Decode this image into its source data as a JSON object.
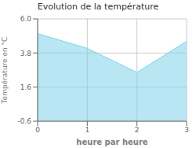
{
  "chart_data": {
    "type": "area",
    "title": "Evolution de la température",
    "xlabel": "heure par heure",
    "ylabel": "Température en °C",
    "x": [
      0,
      1,
      2,
      3
    ],
    "values": [
      5.05,
      4.1,
      2.55,
      4.55
    ],
    "color": "#7dd4ea",
    "xlim": [
      0,
      3
    ],
    "ylim": [
      -0.6,
      6.0
    ],
    "xticks": [
      0,
      1,
      2,
      3
    ],
    "yticks": [
      -0.6,
      1.6,
      3.8,
      {
        "value": 6.0,
        "label": "6.0"
      }
    ],
    "grid": true
  }
}
